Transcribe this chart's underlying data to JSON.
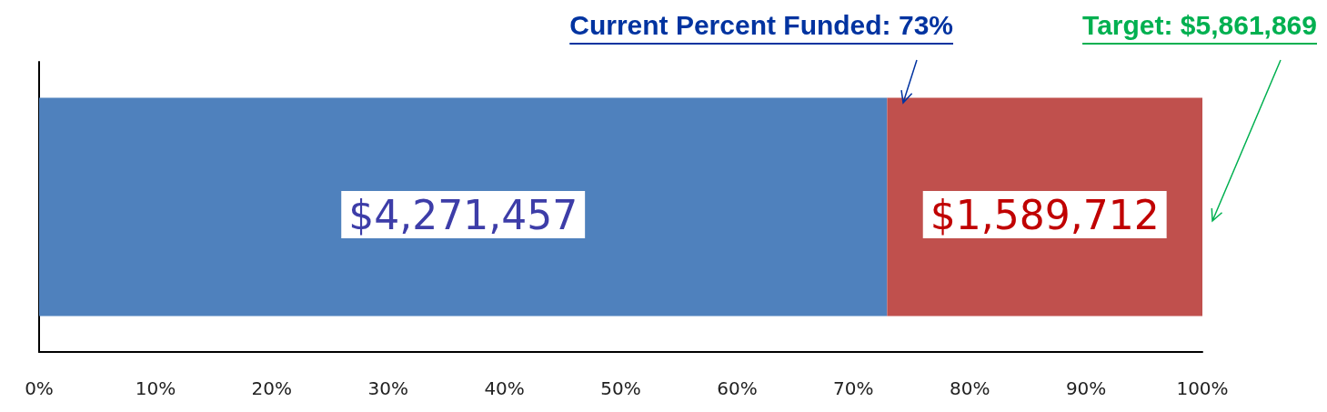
{
  "chart_data": {
    "type": "bar",
    "orientation": "horizontal",
    "stacked": true,
    "categories": [
      null
    ],
    "series": [
      {
        "color": "#4f81bd",
        "values": [
          72.9
        ]
      },
      {
        "color": "#c0504d",
        "values": [
          27.1
        ]
      }
    ],
    "xlim": [
      0,
      100
    ],
    "xticks": [
      {
        "value": 0,
        "label": "0%"
      },
      {
        "value": 10,
        "label": "10%"
      },
      {
        "value": 20,
        "label": "20%"
      },
      {
        "value": 30,
        "label": "30%"
      },
      {
        "value": 40,
        "label": "40%"
      },
      {
        "value": 50,
        "label": "50%"
      },
      {
        "value": 60,
        "label": "60%"
      },
      {
        "value": 70,
        "label": "70%"
      },
      {
        "value": 80,
        "label": "80%"
      },
      {
        "value": 90,
        "label": "90%"
      },
      {
        "value": 100,
        "label": "100%"
      }
    ],
    "annotations": [
      "$4,271,457",
      "$1,589,712",
      "Current Percent Funded: 73%",
      "Target: $5,861,869"
    ],
    "grid": false
  }
}
